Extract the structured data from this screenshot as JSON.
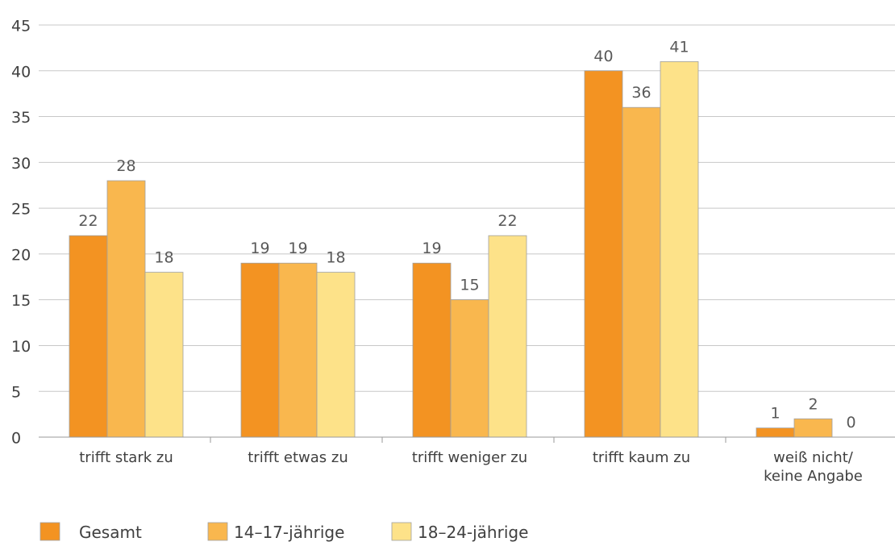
{
  "chart_data": {
    "type": "bar",
    "categories": [
      [
        "trifft stark zu"
      ],
      [
        "trifft etwas zu"
      ],
      [
        "trifft weniger zu"
      ],
      [
        "trifft kaum zu"
      ],
      [
        "weiß nicht/",
        "keine Angabe"
      ]
    ],
    "series": [
      {
        "name": "Gesamt",
        "color": "#F39322",
        "values": [
          22,
          19,
          19,
          40,
          1
        ]
      },
      {
        "name": "14–17-jährige",
        "color": "#F9B74E",
        "values": [
          28,
          19,
          15,
          36,
          2
        ]
      },
      {
        "name": "18–24-jährige",
        "color": "#FDE289",
        "values": [
          18,
          18,
          22,
          41,
          0
        ]
      }
    ],
    "yticks": [
      0,
      5,
      10,
      15,
      20,
      25,
      30,
      35,
      40,
      45
    ],
    "ylim": [
      0,
      45
    ],
    "grid": true,
    "legend_position": "bottom-left",
    "data_labels": true
  }
}
